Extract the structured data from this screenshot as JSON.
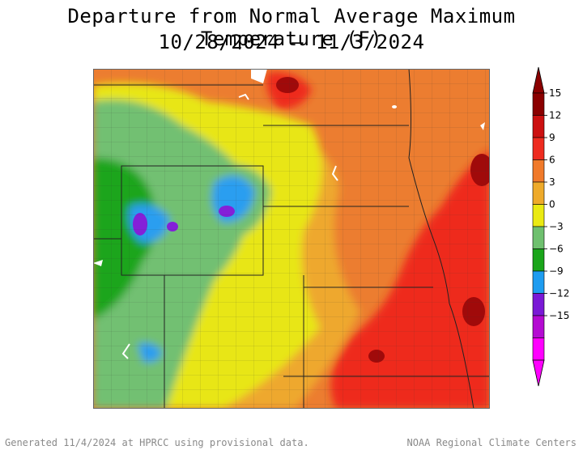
{
  "title": "Departure from Normal Average Maximum Temperature (F)",
  "date_range": "10/28/2024 – 11/3/2024",
  "footer_left": "Generated 11/4/2024 at HPRCC using provisional data.",
  "footer_right": "NOAA Regional Climate Centers",
  "legend": {
    "ticks": [
      "15",
      "12",
      "9",
      "6",
      "3",
      "0",
      "−3",
      "−6",
      "−9",
      "−12",
      "−15"
    ],
    "bands": [
      {
        "color": "#8b0000"
      },
      {
        "color": "#cc1010"
      },
      {
        "color": "#ee2b1f"
      },
      {
        "color": "#f07a2a"
      },
      {
        "color": "#eeaa2a"
      },
      {
        "color": "#eaea12"
      },
      {
        "color": "#6ec06e"
      },
      {
        "color": "#1aa51a"
      },
      {
        "color": "#1e9cf0"
      },
      {
        "color": "#7a19d6"
      },
      {
        "color": "#b40ad2"
      },
      {
        "color": "#ff00ff"
      }
    ]
  },
  "colors": {
    "very_warm": "#a00a0a",
    "warm_red": "#ee2b1f",
    "orange": "#ec7d30",
    "light_orange": "#eea82e",
    "yellow": "#e8e614",
    "light_green": "#72c072",
    "green": "#1ea51e",
    "blue": "#2a9ef0",
    "purple": "#8420d8",
    "water": "#ffffff",
    "border": "#222222"
  }
}
